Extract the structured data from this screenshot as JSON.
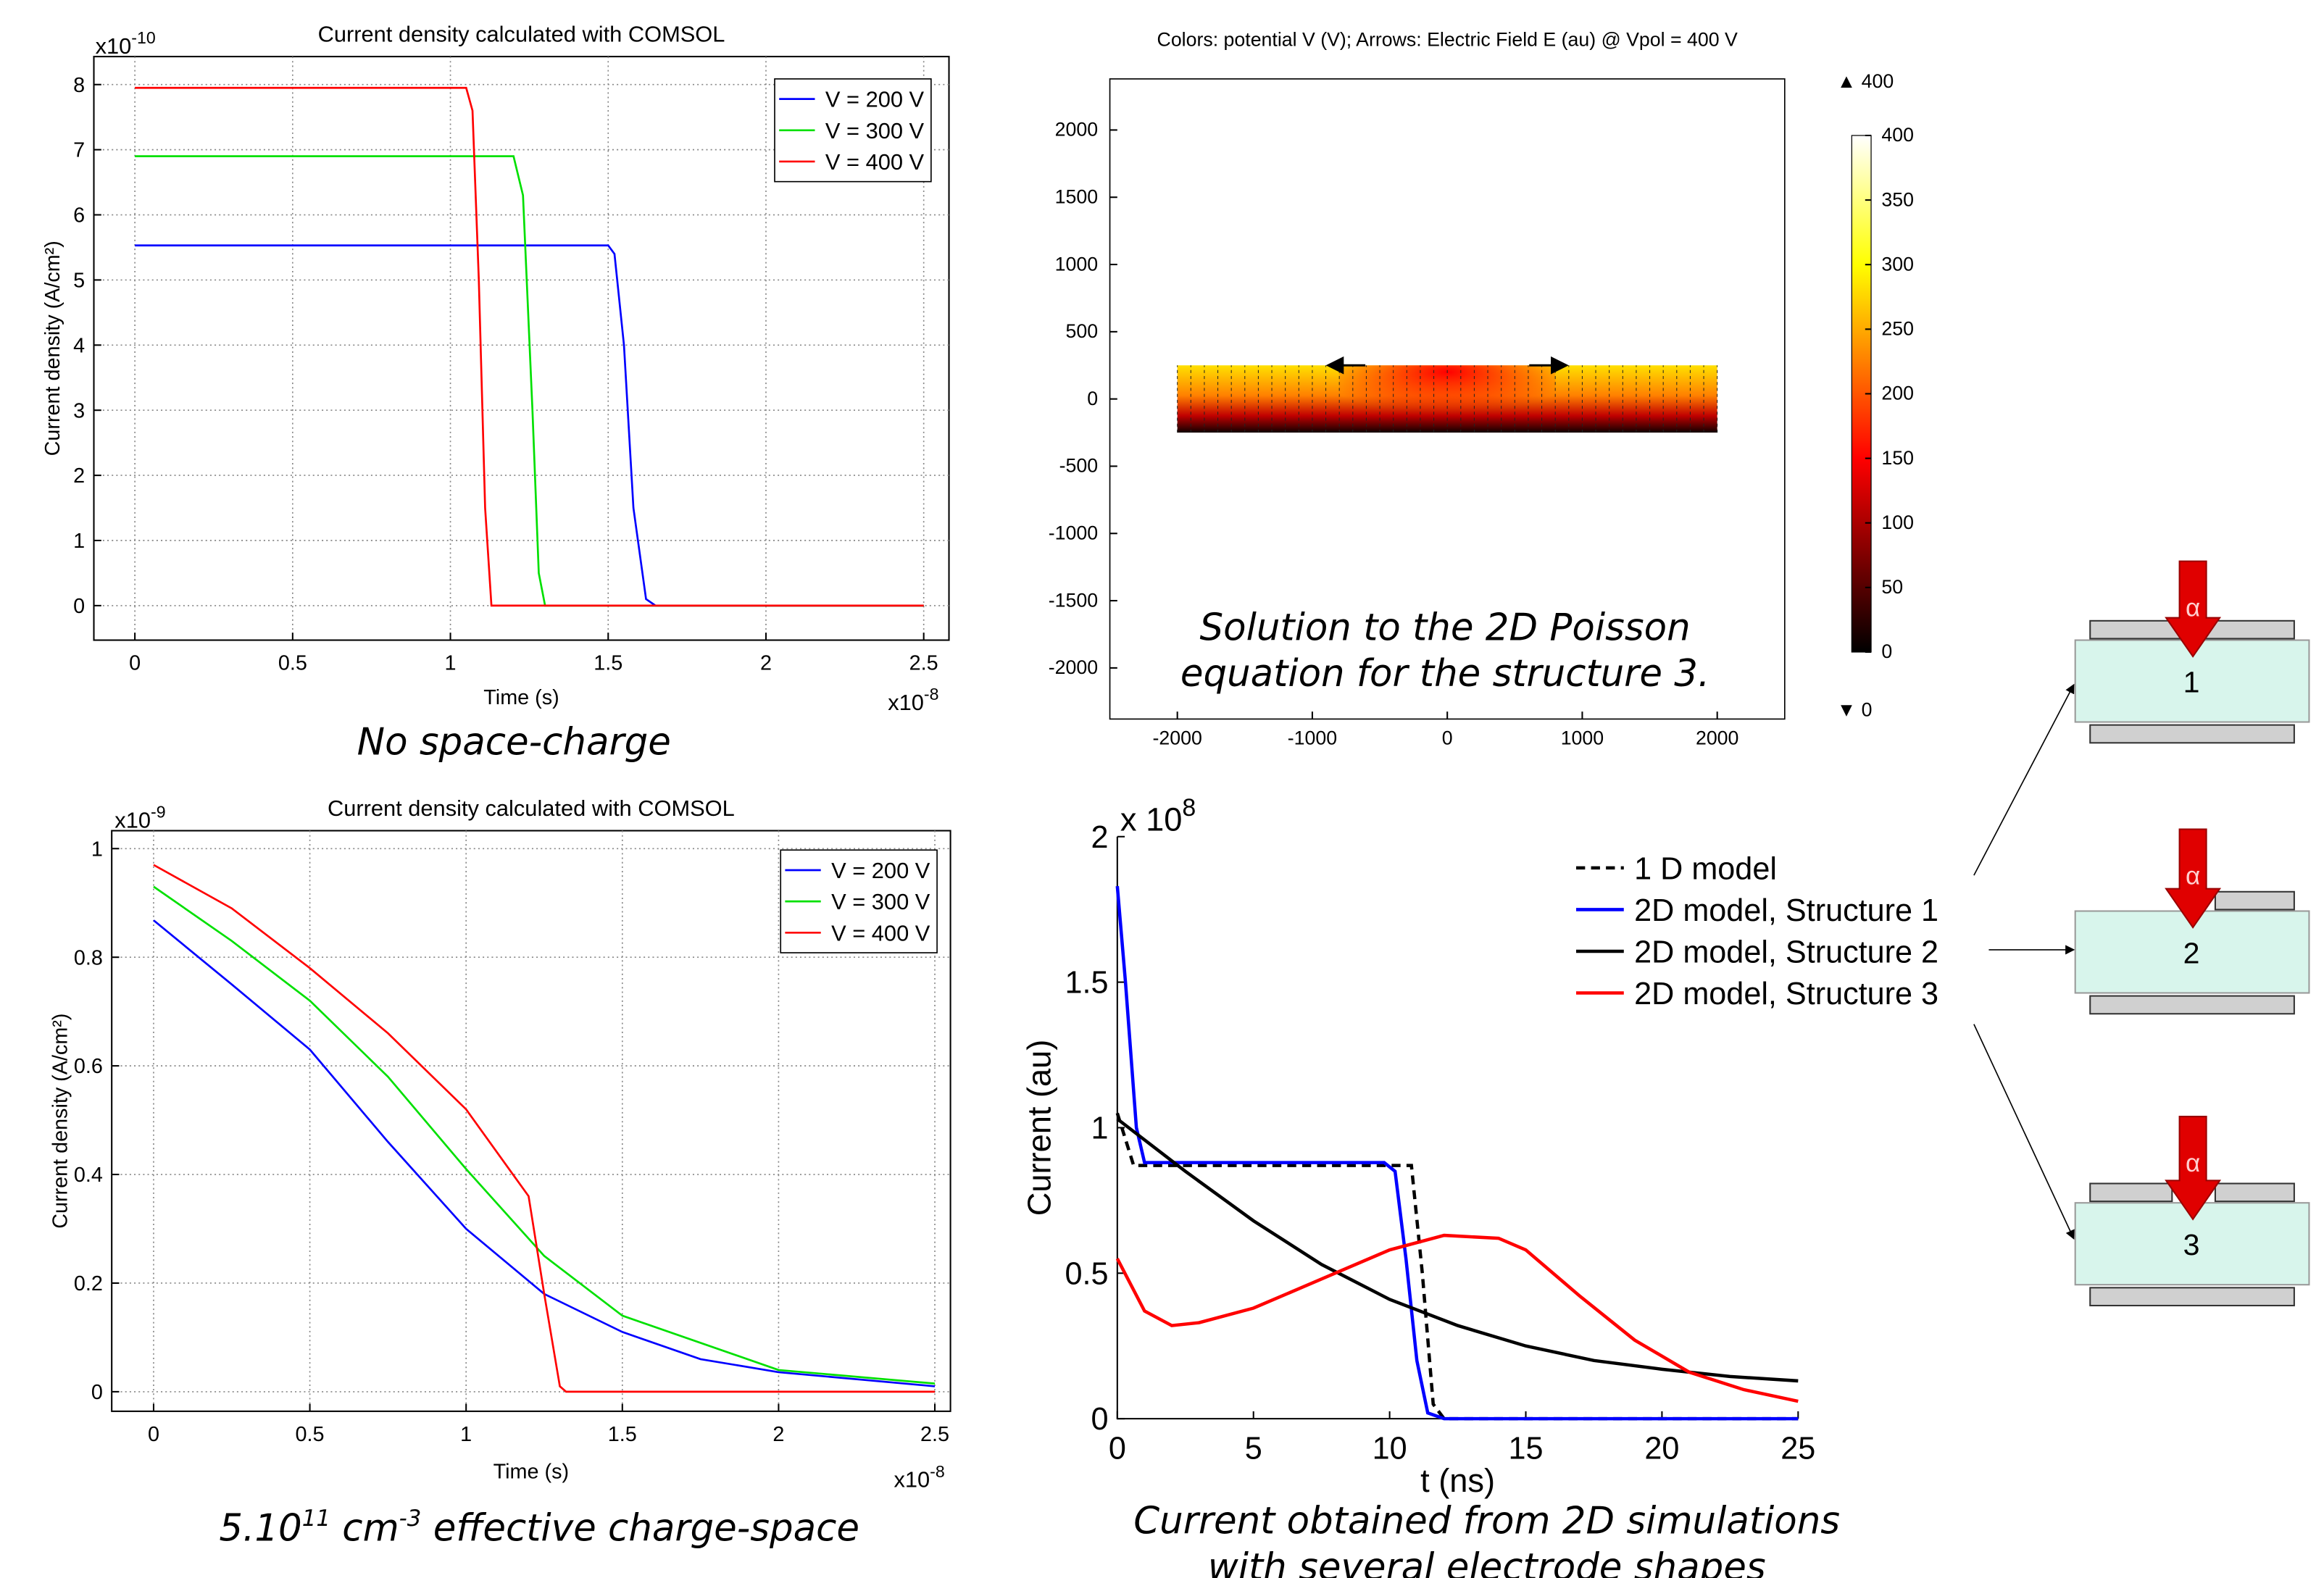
{
  "chart_data": [
    {
      "type": "line",
      "title": "Current density calculated with COMSOL",
      "x_label": "Time (s)",
      "y_label": "Current density (A/cm²)",
      "x_multiplier": {
        "base": "x10",
        "exponent": "-8"
      },
      "y_multiplier": {
        "base": "x10",
        "exponent": "-10"
      },
      "caption": [
        "No space-charge"
      ],
      "xlim": [
        -0.13,
        2.58
      ],
      "ylim": [
        -0.53,
        8.43
      ],
      "xticks": [
        0,
        0.5,
        1,
        1.5,
        2,
        2.5
      ],
      "yticks": [
        0,
        1,
        2,
        3,
        4,
        5,
        6,
        7,
        8
      ],
      "grid": true,
      "legend": "upper right",
      "series": [
        {
          "name": "V = 200 V",
          "color": "#0000ff",
          "x": [
            0,
            1.5,
            1.52,
            1.55,
            1.58,
            1.62,
            1.65,
            2.5
          ],
          "values": [
            5.53,
            5.53,
            5.4,
            4,
            1.5,
            0.1,
            0,
            0
          ]
        },
        {
          "name": "V = 300 V",
          "color": "#00e000",
          "x": [
            0,
            1.2,
            1.23,
            1.26,
            1.28,
            1.3,
            2.5
          ],
          "values": [
            6.9,
            6.9,
            6.3,
            3,
            0.5,
            0,
            0
          ]
        },
        {
          "name": "V = 400 V",
          "color": "#ff0000",
          "x": [
            0,
            1.05,
            1.07,
            1.09,
            1.11,
            1.13,
            2.5
          ],
          "values": [
            7.95,
            7.95,
            7.6,
            5,
            1.5,
            0,
            0
          ]
        }
      ]
    },
    {
      "type": "line",
      "title": "Current density calculated with COMSOL",
      "x_label": "Time (s)",
      "y_label": "Current density (A/cm²)",
      "x_multiplier": {
        "base": "x10",
        "exponent": "-8"
      },
      "y_multiplier": {
        "base": "x10",
        "exponent": "-9"
      },
      "caption_parts": [
        {
          "text": "5.10"
        },
        {
          "sup": "11"
        },
        {
          "text": " cm"
        },
        {
          "sup": "-3"
        },
        {
          "text": " effective charge-space"
        }
      ],
      "xlim": [
        -0.134,
        2.55
      ],
      "ylim": [
        -0.036,
        1.033
      ],
      "xticks": [
        0,
        0.5,
        1,
        1.5,
        2,
        2.5
      ],
      "yticks": [
        0,
        0.2,
        0.4,
        0.6,
        0.8,
        1
      ],
      "grid": true,
      "legend": "upper right",
      "series": [
        {
          "name": "V = 200 V",
          "color": "#0000ff",
          "x": [
            0,
            0.25,
            0.5,
            0.75,
            1,
            1.25,
            1.5,
            1.75,
            2,
            2.5
          ],
          "values": [
            0.868,
            0.75,
            0.63,
            0.46,
            0.3,
            0.18,
            0.11,
            0.06,
            0.036,
            0.01
          ]
        },
        {
          "name": "V = 300 V",
          "color": "#00e000",
          "x": [
            0,
            0.25,
            0.5,
            0.75,
            1,
            1.25,
            1.5,
            2,
            2.5
          ],
          "values": [
            0.93,
            0.83,
            0.72,
            0.58,
            0.41,
            0.25,
            0.14,
            0.04,
            0.015
          ]
        },
        {
          "name": "V = 400 V",
          "color": "#ff0000",
          "x": [
            0,
            0.25,
            0.5,
            0.75,
            1,
            1.15,
            1.2,
            1.25,
            1.3,
            1.32,
            2.5
          ],
          "values": [
            0.97,
            0.89,
            0.78,
            0.66,
            0.52,
            0.4,
            0.36,
            0.18,
            0.01,
            0,
            0
          ]
        }
      ]
    },
    {
      "type": "field",
      "title": "Colors: potential V (V); Arrows: Electric Field E (au) @ Vpol = 400 V",
      "caption": [
        "Solution to the 2D Poisson",
        "equation for the structure  3."
      ],
      "xlim": [
        -2500,
        2500
      ],
      "ylim": [
        -2380,
        2380
      ],
      "xticks": [
        -2000,
        -1000,
        0,
        1000,
        2000
      ],
      "yticks": [
        -2000,
        -1500,
        -1000,
        -500,
        0,
        500,
        1000,
        1500,
        2000
      ],
      "domain": {
        "x": [
          -2000,
          2000
        ],
        "y": [
          -250,
          250
        ]
      },
      "colorbar": {
        "colormap": "hot",
        "lim": [
          0,
          400
        ],
        "ticks": [
          0,
          50,
          100,
          150,
          200,
          250,
          300,
          350,
          400
        ],
        "max_marker": "▲ 400",
        "min_marker": "▼ 0"
      }
    },
    {
      "type": "line",
      "x_label": "t (ns)",
      "y_label": "Current (au)",
      "y_multiplier": {
        "base": "x 10",
        "exponent": "8"
      },
      "caption": [
        "Current obtained  from 2D simulations",
        "with several electrode shapes"
      ],
      "xlim": [
        0,
        25
      ],
      "ylim": [
        0,
        2
      ],
      "xticks": [
        0,
        5,
        10,
        15,
        20,
        25
      ],
      "yticks": [
        0,
        0.5,
        1,
        1.5,
        2
      ],
      "grid": false,
      "legend": "upper right",
      "series": [
        {
          "name": "1 D model",
          "color": "#000000",
          "dash": true,
          "x": [
            0,
            0.5,
            0.6,
            10.8,
            11.2,
            11.6,
            12,
            25
          ],
          "values": [
            1.05,
            0.9,
            0.87,
            0.87,
            0.5,
            0.05,
            0,
            0
          ]
        },
        {
          "name": "2D model, Structure 1",
          "color": "#0000ff",
          "x": [
            0,
            0.3,
            0.7,
            1,
            9.8,
            10.2,
            10.6,
            11,
            11.4,
            12,
            25
          ],
          "values": [
            1.83,
            1.5,
            1,
            0.88,
            0.88,
            0.85,
            0.55,
            0.2,
            0.02,
            0,
            0
          ]
        },
        {
          "name": "2D model, Structure 2",
          "color": "#000000",
          "x": [
            0,
            2.5,
            5,
            7.5,
            10,
            12.5,
            15,
            17.5,
            20,
            22.5,
            25
          ],
          "values": [
            1.03,
            0.85,
            0.68,
            0.53,
            0.41,
            0.32,
            0.25,
            0.2,
            0.17,
            0.145,
            0.13
          ]
        },
        {
          "name": "2D model, Structure 3",
          "color": "#ff0000",
          "x": [
            0,
            1,
            2,
            3,
            5,
            7.5,
            10,
            12,
            14,
            15,
            17,
            19,
            21,
            23,
            25
          ],
          "values": [
            0.55,
            0.37,
            0.32,
            0.33,
            0.38,
            0.48,
            0.58,
            0.63,
            0.62,
            0.58,
            0.42,
            0.27,
            0.16,
            0.1,
            0.06
          ]
        }
      ]
    }
  ],
  "structures": [
    {
      "label": "1",
      "symbol": "α"
    },
    {
      "label": "2",
      "symbol": "α"
    },
    {
      "label": "3",
      "symbol": "α"
    }
  ]
}
